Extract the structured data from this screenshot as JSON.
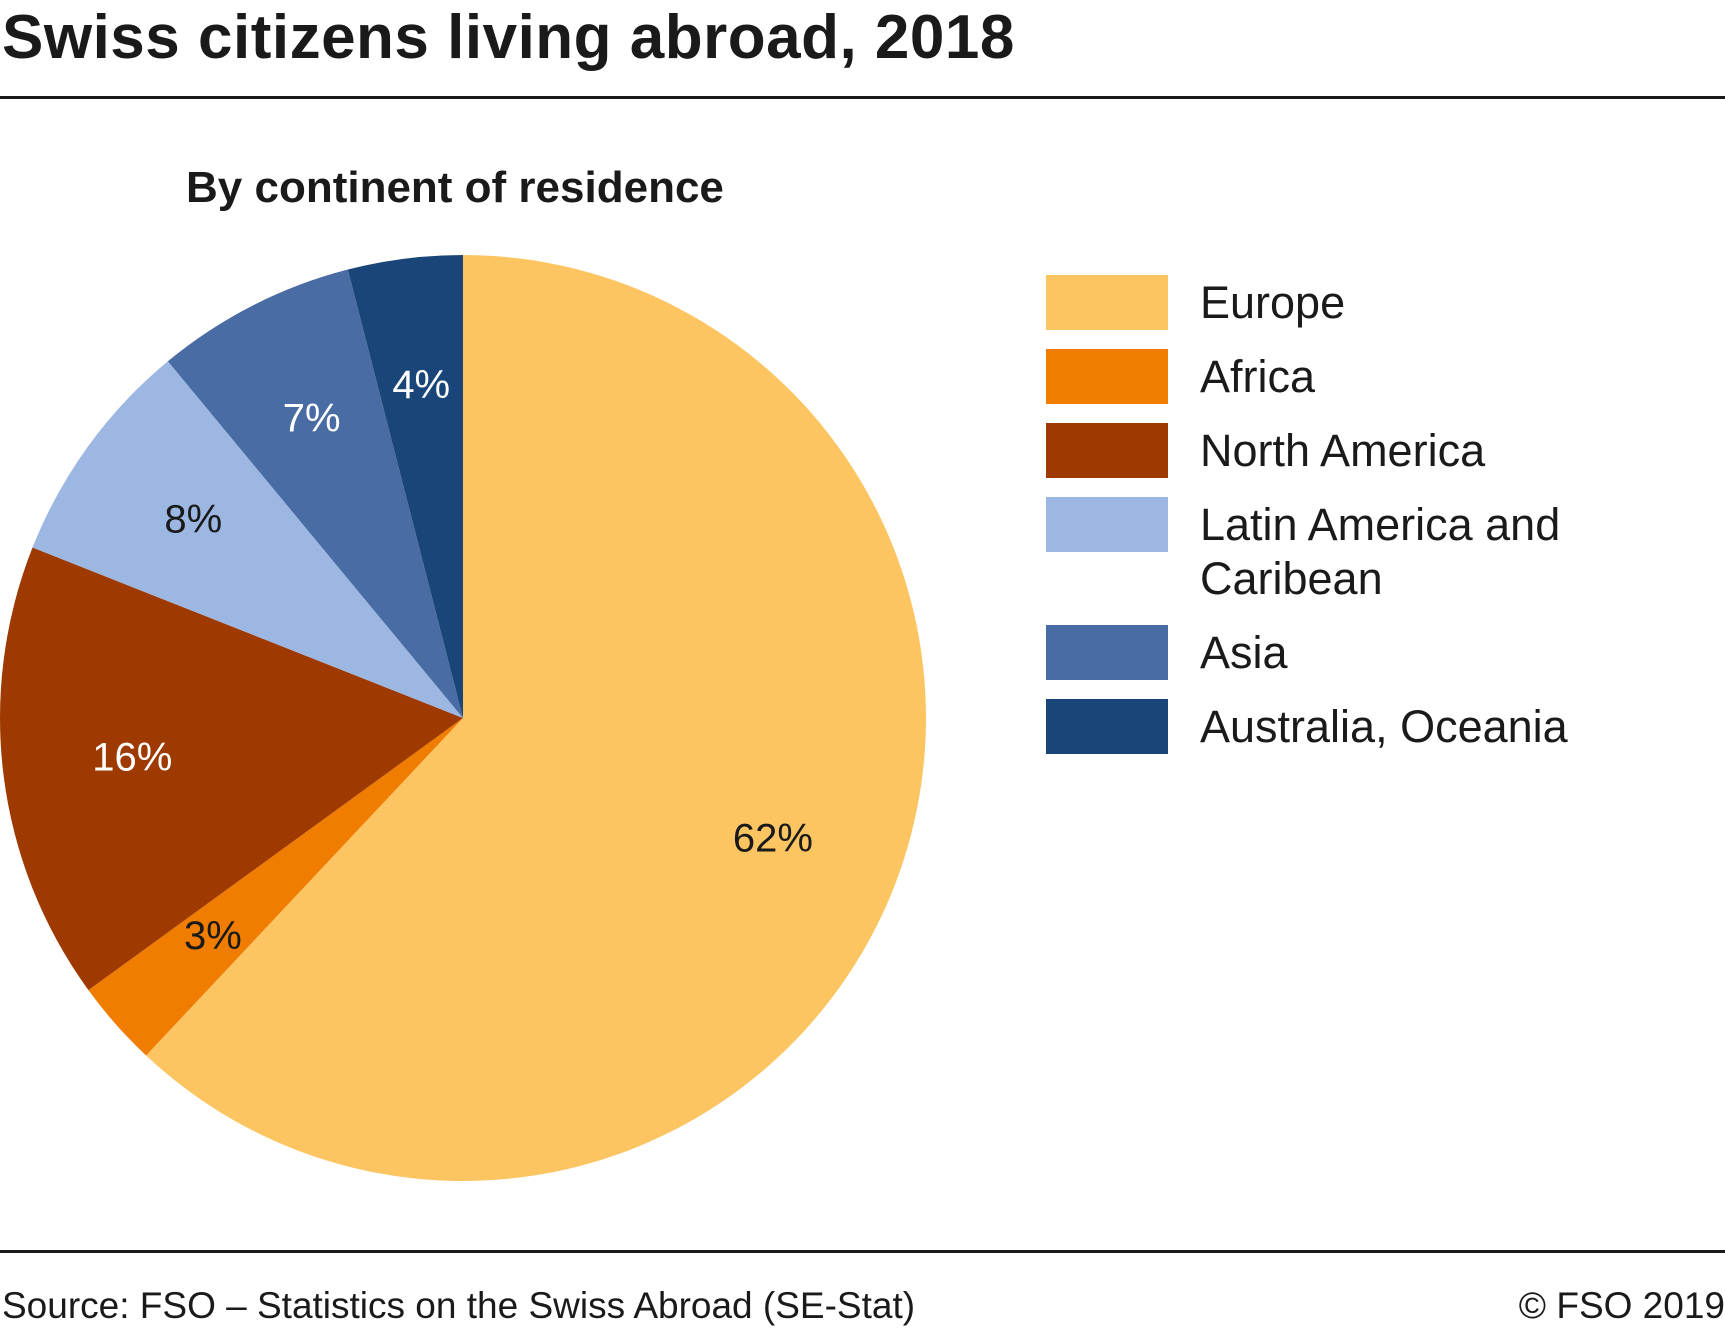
{
  "title": "Swiss citizens living abroad, 2018",
  "footer": {
    "source": "Source: FSO – Statistics on the Swiss Abroad (SE-Stat)",
    "copyright": "© FSO 2019"
  },
  "chart_data": {
    "type": "pie",
    "subtitle": "By continent of residence",
    "legend_position": "right",
    "slices": [
      {
        "name": "Europe",
        "value": 62,
        "label": "62%",
        "color": "#FDC562",
        "label_color": "#1a1a1a"
      },
      {
        "name": "Africa",
        "value": 3,
        "label": "3%",
        "color": "#F07C00",
        "label_color": "#1a1a1a"
      },
      {
        "name": "North America",
        "value": 16,
        "label": "16%",
        "color": "#9E3A00",
        "label_color": "#ffffff"
      },
      {
        "name": "Latin America and Caribean",
        "value": 8,
        "label": "8%",
        "color": "#9BB7E2",
        "label_color": "#1a1a1a"
      },
      {
        "name": "Asia",
        "value": 7,
        "label": "7%",
        "color": "#4A6CA4",
        "label_color": "#ffffff"
      },
      {
        "name": "Australia, Oceania",
        "value": 4,
        "label": "4%",
        "color": "#1A4578",
        "label_color": "#ffffff"
      }
    ]
  }
}
